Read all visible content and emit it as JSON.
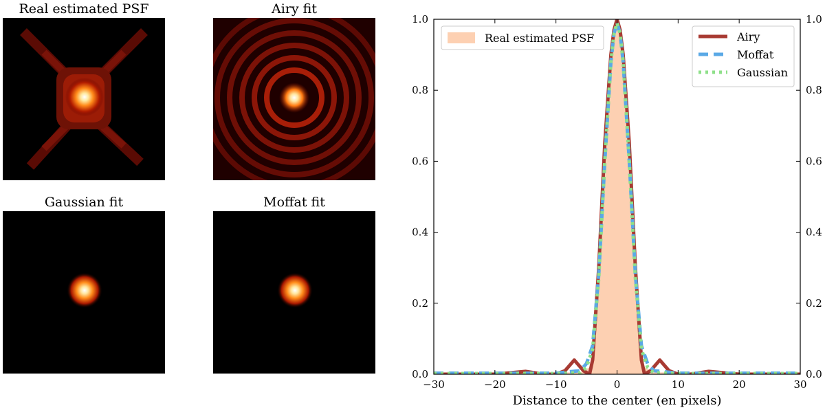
{
  "panels": [
    {
      "title": "Real estimated PSF",
      "kind": "real"
    },
    {
      "title": "Airy fit",
      "kind": "airy"
    },
    {
      "title": "Gaussian fit",
      "kind": "gaussian"
    },
    {
      "title": "Moffat fit",
      "kind": "moffat"
    }
  ],
  "chart_data": {
    "type": "line",
    "xlabel": "Distance to the center (en pixels)",
    "ylabel": "",
    "xlim": [
      -30,
      30
    ],
    "ylim": [
      0,
      1
    ],
    "xticks": [
      -30,
      -20,
      -10,
      0,
      10,
      20,
      30
    ],
    "yticks": [
      0.0,
      0.2,
      0.4,
      0.6,
      0.8,
      1.0
    ],
    "ytick_labels": [
      "0.0",
      "0.2",
      "0.4",
      "0.6",
      "0.8",
      "1.0"
    ],
    "secondary_y_axis": true,
    "legend_left": {
      "placement": "top-left",
      "entries": [
        "Real estimated PSF"
      ]
    },
    "legend_right": {
      "placement": "top-right",
      "entries": [
        "Airy",
        "Moffat",
        "Gaussian"
      ]
    },
    "series": [
      {
        "name": "Real estimated PSF",
        "style": "filled-area",
        "color": "#fdd0b2",
        "x": [
          -30,
          -10,
          -6,
          -4.5,
          -4,
          -3,
          -2,
          -1,
          -0.5,
          0,
          0.5,
          1,
          2,
          3,
          4,
          4.5,
          6,
          10,
          30
        ],
        "y": [
          0.005,
          0.005,
          0.005,
          0.02,
          0.06,
          0.28,
          0.6,
          0.86,
          0.95,
          0.98,
          0.95,
          0.86,
          0.6,
          0.28,
          0.06,
          0.02,
          0.005,
          0.005,
          0.005
        ]
      },
      {
        "name": "Airy",
        "style": "solid",
        "color": "#a83a32",
        "x": [
          -30,
          -20,
          -15,
          -12,
          -10,
          -8.5,
          -7,
          -5.5,
          -4.5,
          -4,
          -3,
          -2,
          -1,
          -0.5,
          0,
          0.5,
          1,
          2,
          3,
          4,
          4.5,
          5.5,
          7,
          8.5,
          10,
          12,
          15,
          20,
          30
        ],
        "y": [
          0.0,
          0.0,
          0.008,
          0.0,
          0.0,
          0.01,
          0.04,
          0.01,
          0.0,
          0.04,
          0.3,
          0.65,
          0.9,
          0.97,
          1.0,
          0.97,
          0.9,
          0.65,
          0.3,
          0.04,
          0.0,
          0.01,
          0.04,
          0.01,
          0.0,
          0.0,
          0.008,
          0.0,
          0.0
        ]
      },
      {
        "name": "Moffat",
        "style": "dashed",
        "color": "#5aa9e6",
        "x": [
          -30,
          -10,
          -6,
          -5,
          -4,
          -3,
          -2,
          -1,
          -0.5,
          0,
          0.5,
          1,
          2,
          3,
          4,
          5,
          6,
          10,
          30
        ],
        "y": [
          0.003,
          0.003,
          0.01,
          0.03,
          0.08,
          0.28,
          0.6,
          0.88,
          0.96,
          0.99,
          0.96,
          0.88,
          0.6,
          0.28,
          0.08,
          0.03,
          0.01,
          0.003,
          0.003
        ]
      },
      {
        "name": "Gaussian",
        "style": "dotted",
        "color": "#8fe08a",
        "x": [
          -30,
          -10,
          -6,
          -5,
          -4,
          -3,
          -2,
          -1,
          -0.5,
          0,
          0.5,
          1,
          2,
          3,
          4,
          5,
          6,
          10,
          30
        ],
        "y": [
          0.002,
          0.002,
          0.004,
          0.02,
          0.07,
          0.27,
          0.6,
          0.88,
          0.96,
          0.99,
          0.96,
          0.88,
          0.6,
          0.27,
          0.07,
          0.02,
          0.004,
          0.002,
          0.002
        ]
      }
    ]
  }
}
